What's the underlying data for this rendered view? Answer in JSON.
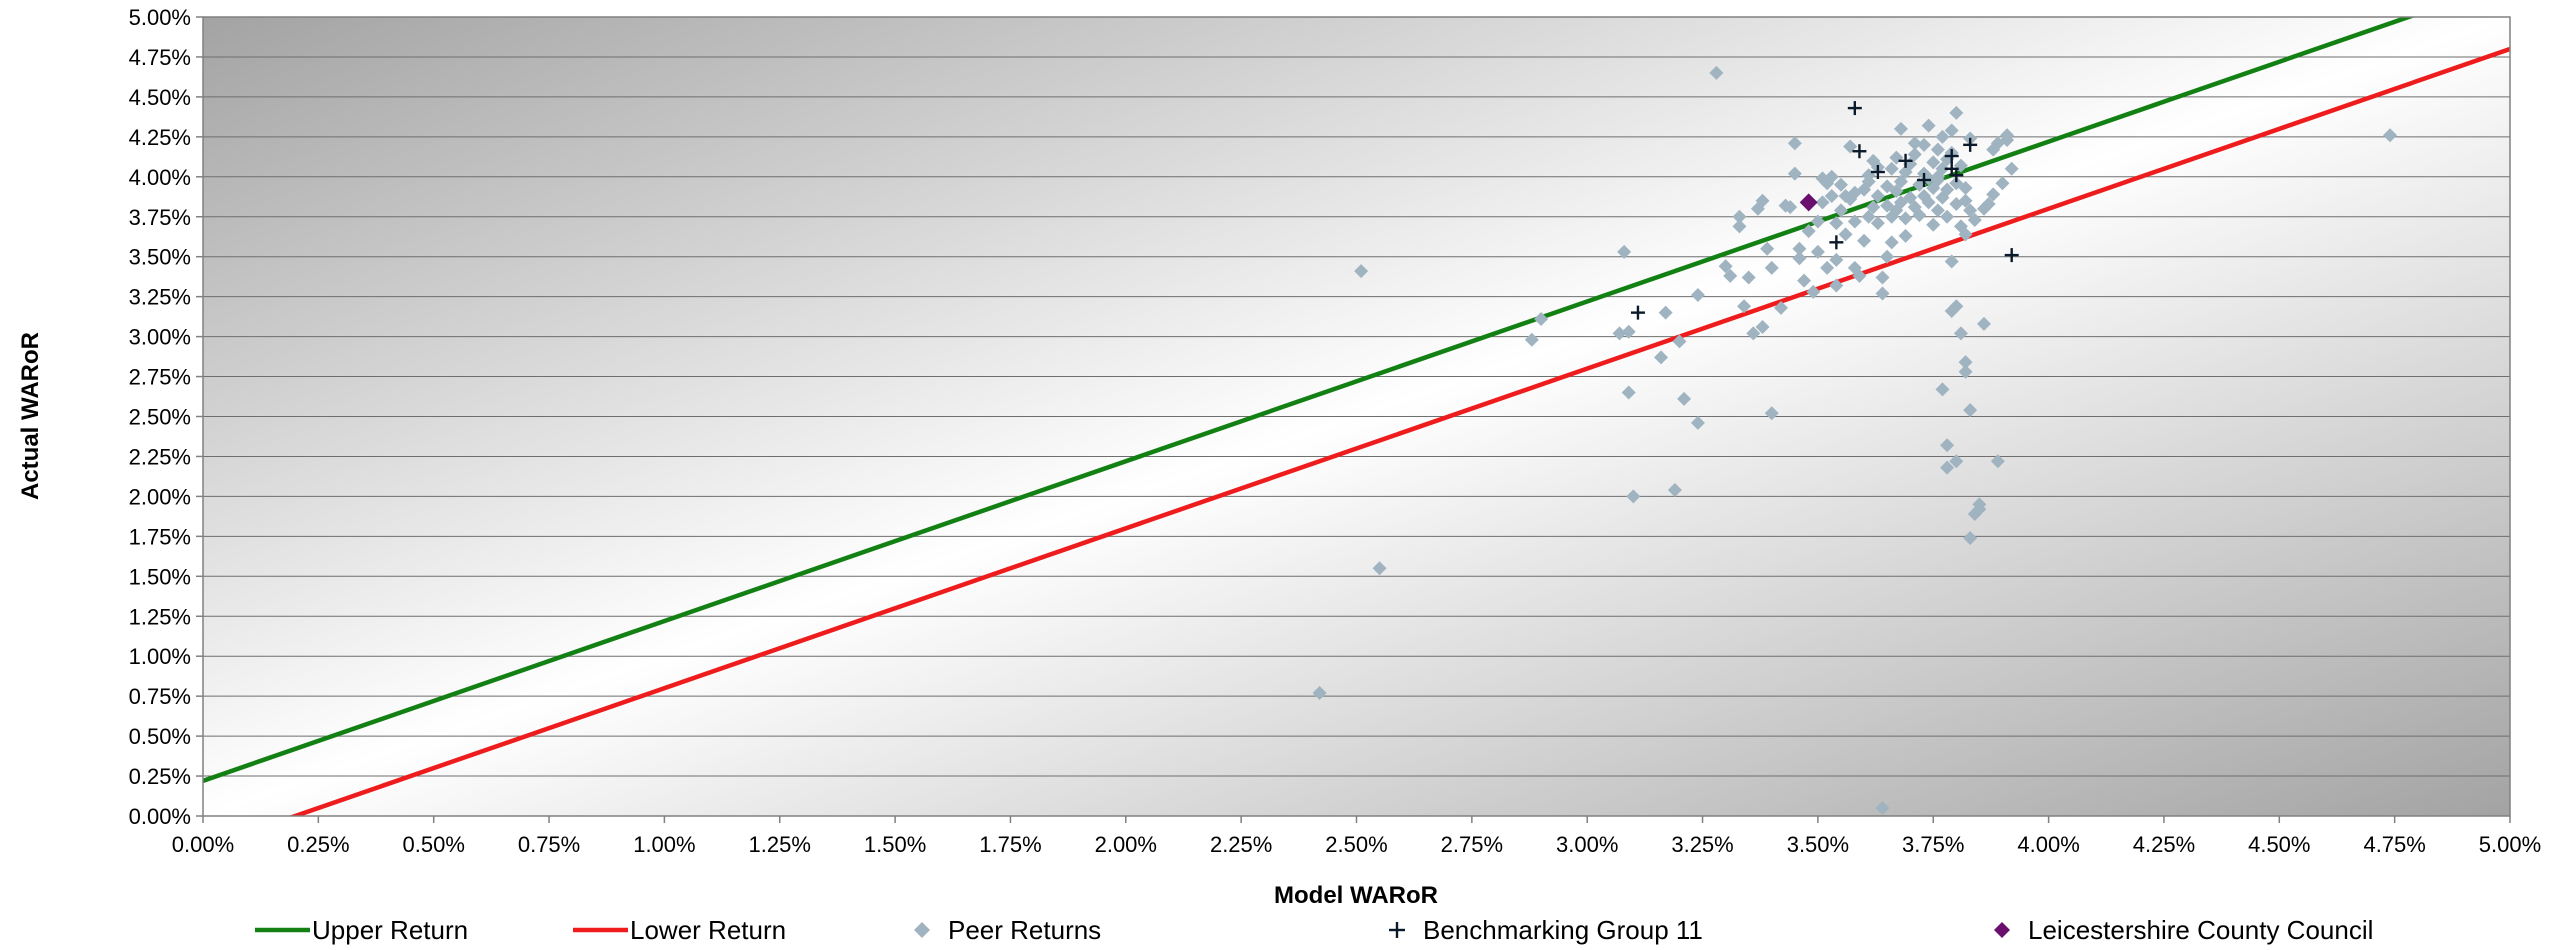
{
  "chart_data": {
    "type": "scatter",
    "title": "",
    "xlabel": "Model WARoR",
    "ylabel": "Actual WARoR",
    "xlim": [
      0,
      5
    ],
    "ylim": [
      0,
      5
    ],
    "x_ticks": [
      "0.00%",
      "0.25%",
      "0.50%",
      "0.75%",
      "1.00%",
      "1.25%",
      "1.50%",
      "1.75%",
      "2.00%",
      "2.25%",
      "2.50%",
      "2.75%",
      "3.00%",
      "3.25%",
      "3.50%",
      "3.75%",
      "4.00%",
      "4.25%",
      "4.50%",
      "4.75%",
      "5.00%"
    ],
    "y_ticks": [
      "0.00%",
      "0.25%",
      "0.50%",
      "0.75%",
      "1.00%",
      "1.25%",
      "1.50%",
      "1.75%",
      "2.00%",
      "2.25%",
      "2.50%",
      "2.75%",
      "3.00%",
      "3.25%",
      "3.50%",
      "3.75%",
      "4.00%",
      "4.25%",
      "4.50%",
      "4.75%",
      "5.00%"
    ],
    "grid": "horizontal",
    "legend_position": "bottom",
    "colors": {
      "upper": "#138013",
      "lower": "#ee1c1c",
      "peer": "#9fb3c0",
      "bench": "#0a1a2a",
      "council": "#6a0f6e"
    },
    "series": [
      {
        "name": "Upper Return",
        "kind": "line",
        "points": [
          [
            0,
            0.22
          ],
          [
            5,
            5.22
          ]
        ]
      },
      {
        "name": "Lower Return",
        "kind": "line",
        "points": [
          [
            0,
            -0.2
          ],
          [
            5,
            4.8
          ]
        ]
      },
      {
        "name": "Peer Returns",
        "kind": "diamond",
        "points": [
          [
            3.28,
            4.65
          ],
          [
            2.51,
            3.41
          ],
          [
            4.74,
            4.26
          ],
          [
            2.55,
            1.55
          ],
          [
            2.42,
            0.77
          ],
          [
            3.64,
            0.05
          ],
          [
            3.08,
            3.53
          ],
          [
            3.09,
            2.65
          ],
          [
            3.1,
            2.0
          ],
          [
            3.07,
            3.02
          ],
          [
            3.09,
            3.03
          ],
          [
            3.16,
            2.87
          ],
          [
            3.17,
            3.15
          ],
          [
            3.19,
            2.04
          ],
          [
            3.2,
            2.97
          ],
          [
            3.21,
            2.61
          ],
          [
            3.24,
            2.46
          ],
          [
            3.24,
            3.26
          ],
          [
            2.9,
            3.11
          ],
          [
            2.88,
            2.98
          ],
          [
            3.3,
            3.44
          ],
          [
            3.31,
            3.38
          ],
          [
            3.33,
            3.75
          ],
          [
            3.33,
            3.69
          ],
          [
            3.34,
            3.19
          ],
          [
            3.35,
            3.37
          ],
          [
            3.36,
            3.02
          ],
          [
            3.37,
            3.8
          ],
          [
            3.38,
            3.85
          ],
          [
            3.38,
            3.06
          ],
          [
            3.39,
            3.55
          ],
          [
            3.4,
            3.43
          ],
          [
            3.4,
            2.52
          ],
          [
            3.42,
            3.18
          ],
          [
            3.43,
            3.82
          ],
          [
            3.44,
            3.81
          ],
          [
            3.45,
            4.21
          ],
          [
            3.45,
            4.02
          ],
          [
            3.46,
            3.55
          ],
          [
            3.46,
            3.49
          ],
          [
            3.47,
            3.35
          ],
          [
            3.48,
            3.66
          ],
          [
            3.49,
            3.28
          ],
          [
            3.5,
            3.72
          ],
          [
            3.5,
            3.53
          ],
          [
            3.51,
            3.84
          ],
          [
            3.51,
            3.99
          ],
          [
            3.52,
            3.96
          ],
          [
            3.52,
            3.43
          ],
          [
            3.53,
            3.88
          ],
          [
            3.53,
            4.0
          ],
          [
            3.54,
            3.71
          ],
          [
            3.54,
            3.48
          ],
          [
            3.55,
            3.95
          ],
          [
            3.55,
            3.79
          ],
          [
            3.56,
            3.64
          ],
          [
            3.56,
            3.88
          ],
          [
            3.57,
            3.86
          ],
          [
            3.57,
            4.19
          ],
          [
            3.58,
            3.9
          ],
          [
            3.58,
            3.72
          ],
          [
            3.59,
            3.38
          ],
          [
            3.6,
            3.92
          ],
          [
            3.6,
            3.6
          ],
          [
            3.61,
            4.01
          ],
          [
            3.61,
            3.75
          ],
          [
            3.62,
            4.1
          ],
          [
            3.62,
            3.81
          ],
          [
            3.63,
            4.06
          ],
          [
            3.63,
            3.88
          ],
          [
            3.63,
            3.71
          ],
          [
            3.64,
            3.37
          ],
          [
            3.64,
            3.27
          ],
          [
            3.65,
            3.94
          ],
          [
            3.65,
            3.82
          ],
          [
            3.65,
            3.5
          ],
          [
            3.66,
            3.75
          ],
          [
            3.66,
            4.05
          ],
          [
            3.66,
            3.59
          ],
          [
            3.67,
            4.12
          ],
          [
            3.67,
            3.91
          ],
          [
            3.67,
            3.79
          ],
          [
            3.68,
            3.97
          ],
          [
            3.68,
            4.3
          ],
          [
            3.68,
            3.84
          ],
          [
            3.69,
            4.03
          ],
          [
            3.69,
            3.74
          ],
          [
            3.7,
            4.08
          ],
          [
            3.7,
            3.87
          ],
          [
            3.71,
            3.81
          ],
          [
            3.71,
            4.14
          ],
          [
            3.72,
            3.95
          ],
          [
            3.72,
            3.76
          ],
          [
            3.73,
            4.2
          ],
          [
            3.73,
            4.02
          ],
          [
            3.73,
            3.88
          ],
          [
            3.74,
            4.32
          ],
          [
            3.74,
            3.84
          ],
          [
            3.75,
            4.09
          ],
          [
            3.75,
            3.93
          ],
          [
            3.75,
            3.7
          ],
          [
            3.76,
            4.17
          ],
          [
            3.76,
            3.98
          ],
          [
            3.76,
            3.79
          ],
          [
            3.77,
            4.25
          ],
          [
            3.77,
            4.05
          ],
          [
            3.77,
            3.87
          ],
          [
            3.77,
            2.67
          ],
          [
            3.78,
            4.11
          ],
          [
            3.78,
            3.92
          ],
          [
            3.78,
            3.75
          ],
          [
            3.78,
            2.32
          ],
          [
            3.78,
            2.18
          ],
          [
            3.79,
            3.47
          ],
          [
            3.79,
            3.16
          ],
          [
            3.79,
            4.29
          ],
          [
            3.8,
            3.96
          ],
          [
            3.8,
            3.83
          ],
          [
            3.8,
            3.19
          ],
          [
            3.8,
            2.22
          ],
          [
            3.8,
            4.4
          ],
          [
            3.81,
            4.07
          ],
          [
            3.81,
            3.69
          ],
          [
            3.81,
            3.02
          ],
          [
            3.82,
            3.93
          ],
          [
            3.82,
            3.85
          ],
          [
            3.82,
            3.64
          ],
          [
            3.82,
            2.84
          ],
          [
            3.82,
            2.78
          ],
          [
            3.83,
            4.24
          ],
          [
            3.83,
            3.79
          ],
          [
            3.83,
            2.54
          ],
          [
            3.83,
            1.74
          ],
          [
            3.84,
            3.73
          ],
          [
            3.84,
            1.89
          ],
          [
            3.85,
            1.92
          ],
          [
            3.85,
            1.95
          ],
          [
            3.86,
            3.08
          ],
          [
            3.86,
            3.8
          ],
          [
            3.87,
            3.83
          ],
          [
            3.88,
            4.17
          ],
          [
            3.89,
            2.22
          ],
          [
            3.89,
            4.21
          ],
          [
            3.9,
            3.96
          ],
          [
            3.91,
            4.26
          ],
          [
            3.91,
            4.23
          ],
          [
            3.92,
            4.05
          ],
          [
            3.88,
            3.89
          ],
          [
            3.74,
            3.99
          ],
          [
            3.69,
            3.63
          ],
          [
            3.58,
            3.43
          ],
          [
            3.54,
            3.32
          ],
          [
            3.61,
            3.97
          ],
          [
            3.71,
            4.21
          ],
          [
            3.76,
            4.0
          ],
          [
            3.79,
            4.15
          ]
        ]
      },
      {
        "name": "Benchmarking Group 11",
        "kind": "plus",
        "points": [
          [
            3.58,
            4.43
          ],
          [
            3.59,
            4.16
          ],
          [
            3.63,
            4.03
          ],
          [
            3.69,
            4.1
          ],
          [
            3.73,
            3.98
          ],
          [
            3.79,
            4.13
          ],
          [
            3.79,
            4.05
          ],
          [
            3.8,
            4.01
          ],
          [
            3.83,
            4.2
          ],
          [
            3.92,
            3.51
          ],
          [
            3.54,
            3.59
          ],
          [
            3.11,
            3.15
          ]
        ]
      },
      {
        "name": "Leicestershire County Council",
        "kind": "diamond",
        "points": [
          [
            3.48,
            3.84
          ]
        ]
      }
    ]
  }
}
